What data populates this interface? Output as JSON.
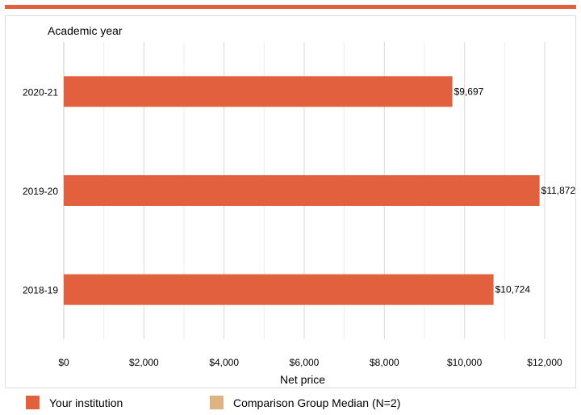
{
  "colors": {
    "accent": "#e2603d",
    "institution": "#e2603d",
    "comparison": "#ddb383",
    "grid": "#d9d9d9",
    "frame": "#dcdcdc"
  },
  "legend": {
    "items": [
      {
        "label": "Your institution",
        "color": "#e2603d"
      },
      {
        "label": "Comparison Group Median (N=2)",
        "color": "#ddb383"
      }
    ]
  },
  "chart_data": {
    "type": "bar",
    "orientation": "horizontal",
    "categories": [
      "2020-21",
      "2019-20",
      "2018-19"
    ],
    "series": [
      {
        "name": "Your institution",
        "values": [
          9697,
          11872,
          10724
        ],
        "color": "#e2603d"
      }
    ],
    "data_labels": [
      "$9,697",
      "$11,872",
      "$10,724"
    ],
    "xlabel": "Net price",
    "ylabel": "Academic year",
    "xlim": [
      0,
      12000
    ],
    "x_ticks": [
      0,
      2000,
      4000,
      6000,
      8000,
      10000,
      12000
    ],
    "x_tick_labels": [
      "$0",
      "$2,000",
      "$4,000",
      "$6,000",
      "$8,000",
      "$10,000",
      "$12,000"
    ],
    "grid": true,
    "legend_position": "bottom"
  }
}
